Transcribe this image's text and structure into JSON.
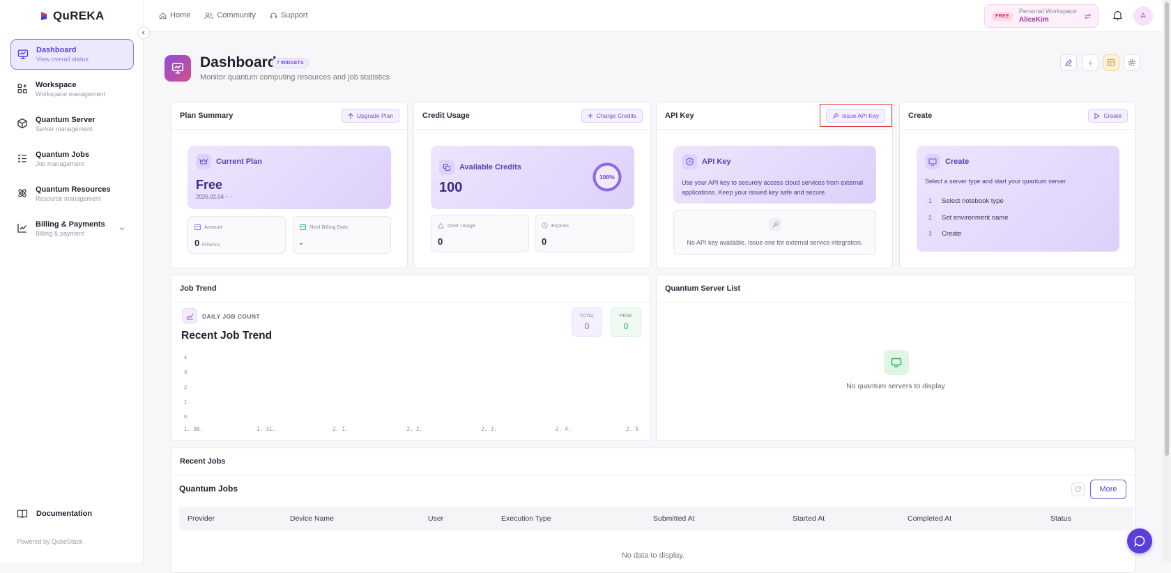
{
  "app": {
    "brand": "QuREKA",
    "powered_by": "Powered by QubeStack"
  },
  "sidebar": {
    "items": [
      {
        "label": "Dashboard",
        "sub": "View overall status"
      },
      {
        "label": "Workspace",
        "sub": "Workspace management"
      },
      {
        "label": "Quantum Server",
        "sub": "Server management"
      },
      {
        "label": "Quantum Jobs",
        "sub": "Job management"
      },
      {
        "label": "Quantum Resources",
        "sub": "Resource management"
      },
      {
        "label": "Billing & Payments",
        "sub": "Billing & payment"
      }
    ],
    "documentation": "Documentation"
  },
  "topbar": {
    "links": [
      "Home",
      "Community",
      "Support"
    ],
    "workspace": {
      "badge": "FREE",
      "label": "Personal Workspace",
      "user": "AliceKim"
    },
    "avatar_letter": "A"
  },
  "header": {
    "title": "Dashboard",
    "widgets_badge": "7 WIDGETS",
    "subtitle": "Monitor quantum computing resources and job statistics"
  },
  "plan": {
    "title": "Plan Summary",
    "button": "Upgrade Plan",
    "panel_title": "Current Plan",
    "plan_name": "Free",
    "period": "2026.02.04 ~ -",
    "amount_label": "Amount",
    "amount_value": "0",
    "amount_unit": "KRW/mo",
    "billing_label": "Next Billing Date",
    "billing_value": "-"
  },
  "credit": {
    "title": "Credit Usage",
    "button": "Charge Credits",
    "panel_title": "Available Credits",
    "value": "100",
    "percent_text": "100%",
    "percent": 100,
    "over_label": "Over Usage",
    "over_value": "0",
    "expires_label": "Expires",
    "expires_value": "0"
  },
  "apikey": {
    "title": "API Key",
    "button": "Issue API Key",
    "panel_title": "API Key",
    "desc_line1": "Use your API key to securely access cloud services from external",
    "desc_line2": "applications. Keep your issued key safe and secure.",
    "empty": "No API key available. Issue one for external service integration."
  },
  "create": {
    "title": "Create",
    "button": "Create",
    "panel_title": "Create",
    "desc": "Select a server type and start your quantum server",
    "steps": [
      {
        "n": "1",
        "label": "Select notebook type"
      },
      {
        "n": "2",
        "label": "Set environment name"
      },
      {
        "n": "3",
        "label": "Create"
      }
    ]
  },
  "jobtrend": {
    "title": "Job Trend",
    "kicker": "DAILY JOB COUNT",
    "heading": "Recent Job Trend",
    "total_label": "TOTAL",
    "total_value": "0",
    "peak_label": "PEAK",
    "peak_value": "0"
  },
  "chart_data": {
    "type": "line",
    "x": [
      "1. 30.",
      "1. 31.",
      "2. 1.",
      "2. 2.",
      "2. 3.",
      "2. 4.",
      "2. 5"
    ],
    "series": [
      {
        "values": [
          0,
          0,
          0,
          0,
          0,
          0,
          0
        ]
      }
    ],
    "yticks": [
      "4",
      "3",
      "2",
      "1",
      "0"
    ],
    "ylim": [
      0,
      4
    ],
    "grid": false
  },
  "servers": {
    "title": "Quantum Server List",
    "empty": "No quantum servers to display"
  },
  "recent": {
    "title": "Recent Jobs",
    "heading": "Quantum Jobs",
    "more": "More",
    "columns": [
      "Provider",
      "Device Name",
      "User",
      "Execution Type",
      "Submitted At",
      "Started At",
      "Completed At",
      "Status"
    ],
    "empty": "No data to display."
  },
  "colors": {
    "accent": "#5b3fd8",
    "highlight": "#e23b3b"
  }
}
